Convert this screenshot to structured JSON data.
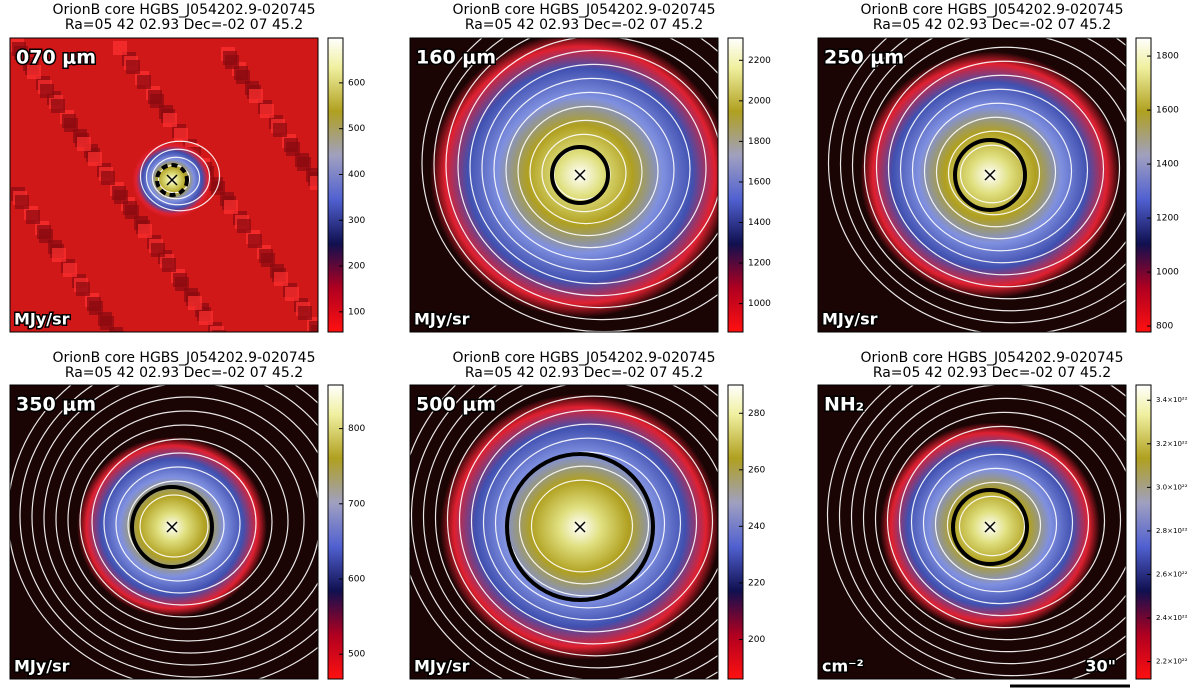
{
  "figure": {
    "panels": [
      {
        "title": "OrionB core HGBS_J054202.9-020745",
        "subtitle": "Ra=05 42 02.93 Dec=-02 07 45.2",
        "label": "070 μm",
        "unit": "MJy/sr",
        "colorbar": {
          "lim": [
            56,
            698
          ],
          "ticks": [
            100,
            200,
            300,
            400,
            500,
            600
          ]
        }
      },
      {
        "title": "OrionB core HGBS_J054202.9-020745",
        "subtitle": "Ra=05 42 02.93 Dec=-02 07 45.2",
        "label": "160 μm",
        "unit": "MJy/sr",
        "colorbar": {
          "lim": [
            860,
            2310
          ],
          "ticks": [
            1000,
            1200,
            1400,
            1600,
            1800,
            2000,
            2200
          ]
        }
      },
      {
        "title": "OrionB core HGBS_J054202.9-020745",
        "subtitle": "Ra=05 42 02.93 Dec=-02 07 45.2",
        "label": "250 μm",
        "unit": "MJy/sr",
        "colorbar": {
          "lim": [
            778,
            1867
          ],
          "ticks": [
            800,
            1000,
            1200,
            1400,
            1600,
            1800
          ]
        }
      },
      {
        "title": "OrionB core HGBS_J054202.9-020745",
        "subtitle": "Ra=05 42 02.93 Dec=-02 07 45.2",
        "label": "350 μm",
        "unit": "MJy/sr",
        "colorbar": {
          "lim": [
            467,
            858
          ],
          "ticks": [
            500,
            600,
            700,
            800
          ]
        }
      },
      {
        "title": "OrionB core HGBS_J054202.9-020745",
        "subtitle": "Ra=05 42 02.93 Dec=-02 07 45.2",
        "label": "500 μm",
        "unit": "MJy/sr",
        "colorbar": {
          "lim": [
            186,
            290
          ],
          "ticks": [
            200,
            220,
            240,
            260,
            280
          ]
        }
      },
      {
        "title": "OrionB core HGBS_J054202.9-020745",
        "subtitle": "Ra=05 42 02.93 Dec=-02 07 45.2",
        "label": "NH₂",
        "unit": "cm⁻²",
        "colorbar": {
          "lim": [
            2.12e+22,
            3.47e+22
          ],
          "ticks": [
            {
              "value": 2.2e+22,
              "label": "2.2×10²²"
            },
            {
              "value": 2.4e+22,
              "label": "2.4×10²²"
            },
            {
              "value": 2.6e+22,
              "label": "2.6×10²²"
            },
            {
              "value": 2.8e+22,
              "label": "2.8×10²²"
            },
            {
              "value": 3e+22,
              "label": "3.0×10²²"
            },
            {
              "value": 3.2e+22,
              "label": "3.2×10²²"
            },
            {
              "value": 3.4e+22,
              "label": "3.4×10²²"
            }
          ]
        },
        "scale_bar": "30\""
      }
    ]
  }
}
